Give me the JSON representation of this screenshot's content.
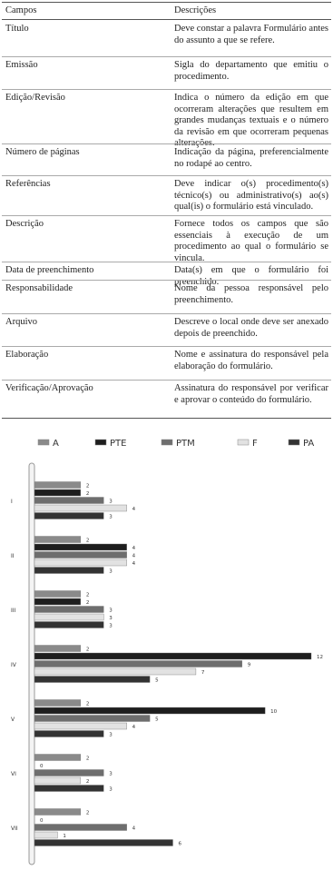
{
  "table": {
    "header": [
      "Campos",
      "Descrições"
    ],
    "rows": [
      [
        "Título",
        "Deve constar a palavra Formulário antes do assunto a que se refere."
      ],
      [
        "Emissão",
        "Sigla do departamento que emitiu o procedimento."
      ],
      [
        "Edição/Revisão",
        "Indica o número da edição em que ocorreram alterações que resultem em grandes mudanças textuais e o número da revisão em que ocorreram pequenas alterações."
      ],
      [
        "Número de páginas",
        "Indicação da página, preferencialmente no rodapé ao centro."
      ],
      [
        "Referências",
        "Deve indicar o(s) procedimento(s) técnico(s) ou administrativo(s) ao(s) qual(is) o formulário está vinculado."
      ],
      [
        "Descrição",
        "Fornece todos os campos que são essenciais à execução de um procedimento ao qual o formulário se vincula."
      ],
      [
        "Data de preenchimento",
        "Data(s) em que o formulário foi preenchido."
      ],
      [
        "Responsabilidade",
        "Nome da pessoa responsável pelo preenchimento."
      ],
      [
        "Arquivo",
        "Descreve o local onde deve ser anexado depois de preenchido."
      ],
      [
        "Elaboração",
        "Nome e assinatura do responsável pela elaboração do formulário."
      ],
      [
        "Verificação/Aprovação",
        "Assinatura do responsável por verificar e aprovar o conteúdo do formulário."
      ]
    ]
  },
  "chart_data": {
    "type": "bar",
    "orientation": "horizontal",
    "categories": [
      "I",
      "II",
      "III",
      "IV",
      "V",
      "VI",
      "VII"
    ],
    "xlim": [
      0,
      12
    ],
    "series": [
      {
        "name": "A",
        "color": "#8a8a8a",
        "values": [
          2,
          2,
          2,
          2,
          2,
          2,
          2
        ]
      },
      {
        "name": "PTE",
        "color": "#1e1e1e",
        "values": [
          2,
          4,
          2,
          12,
          10,
          0,
          0
        ]
      },
      {
        "name": "PTM",
        "color": "#6e6e6e",
        "values": [
          3,
          4,
          3,
          9,
          5,
          3,
          4
        ]
      },
      {
        "name": "F",
        "color": "#e2e2e2",
        "values": [
          4,
          4,
          3,
          7,
          4,
          2,
          1
        ]
      },
      {
        "name": "PA",
        "color": "#333333",
        "values": [
          3,
          3,
          3,
          5,
          3,
          3,
          6
        ]
      }
    ]
  }
}
